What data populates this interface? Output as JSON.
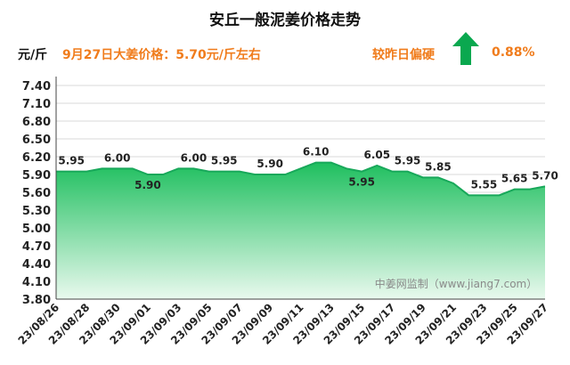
{
  "title": "安丘一般泥姜价格走势",
  "header": {
    "unit": "元/斤",
    "price_info": "9月27日大姜价格：5.70元/斤左右",
    "compare_label": "较昨日偏硬",
    "change_value": "0.88%",
    "trend_icon": "up-arrow-icon"
  },
  "watermark": "中姜网监制（www.jiang7.com）",
  "colors": {
    "accent": "#f07c1c",
    "line": "#18a85a",
    "fill_top": "#1fbf5f",
    "fill_bottom": "#e9f9ee",
    "arrow": "#0aa84f"
  },
  "chart_data": {
    "type": "area",
    "title": "安丘一般泥姜价格走势",
    "ylabel": "元/斤",
    "ylim": [
      3.8,
      7.4
    ],
    "yticks": [
      7.4,
      7.1,
      6.8,
      6.5,
      6.2,
      5.9,
      5.6,
      5.3,
      5.0,
      4.7,
      4.4,
      4.1,
      3.8
    ],
    "ytick_labels": [
      "7.40",
      "7.10",
      "6.80",
      "6.50",
      "6.20",
      "5.90",
      "5.60",
      "5.30",
      "5.00",
      "4.70",
      "4.40",
      "4.10",
      "3.80"
    ],
    "grid": true,
    "x": [
      "23/08/26",
      "23/08/27",
      "23/08/28",
      "23/08/29",
      "23/08/30",
      "23/08/31",
      "23/09/01",
      "23/09/02",
      "23/09/03",
      "23/09/04",
      "23/09/05",
      "23/09/06",
      "23/09/07",
      "23/09/08",
      "23/09/09",
      "23/09/10",
      "23/09/11",
      "23/09/12",
      "23/09/13",
      "23/09/14",
      "23/09/15",
      "23/09/16",
      "23/09/17",
      "23/09/18",
      "23/09/19",
      "23/09/20",
      "23/09/21",
      "23/09/22",
      "23/09/23",
      "23/09/24",
      "23/09/25",
      "23/09/26",
      "23/09/27"
    ],
    "xtick_labels": [
      "23/08/26",
      "23/08/28",
      "23/08/30",
      "23/09/01",
      "23/09/03",
      "23/09/05",
      "23/09/07",
      "23/09/09",
      "23/09/11",
      "23/09/13",
      "23/09/15",
      "23/09/17",
      "23/09/19",
      "23/09/21",
      "23/09/23",
      "23/09/25",
      "23/09/27"
    ],
    "values": [
      5.95,
      5.95,
      5.95,
      6.0,
      6.0,
      6.0,
      5.9,
      5.9,
      6.0,
      6.0,
      5.95,
      5.95,
      5.95,
      5.9,
      5.9,
      5.9,
      6.0,
      6.1,
      6.1,
      6.0,
      5.95,
      6.05,
      5.95,
      5.95,
      5.85,
      5.85,
      5.75,
      5.55,
      5.55,
      5.55,
      5.65,
      5.65,
      5.7
    ],
    "data_labels": [
      {
        "index": 1,
        "text": "5.95"
      },
      {
        "index": 4,
        "text": "6.00"
      },
      {
        "index": 6,
        "text": "5.90"
      },
      {
        "index": 9,
        "text": "6.00"
      },
      {
        "index": 11,
        "text": "5.95"
      },
      {
        "index": 14,
        "text": "5.90"
      },
      {
        "index": 17,
        "text": "6.10"
      },
      {
        "index": 20,
        "text": "5.95"
      },
      {
        "index": 21,
        "text": "6.05"
      },
      {
        "index": 23,
        "text": "5.95"
      },
      {
        "index": 25,
        "text": "5.85"
      },
      {
        "index": 28,
        "text": "5.55"
      },
      {
        "index": 30,
        "text": "5.65"
      },
      {
        "index": 32,
        "text": "5.70"
      }
    ]
  }
}
